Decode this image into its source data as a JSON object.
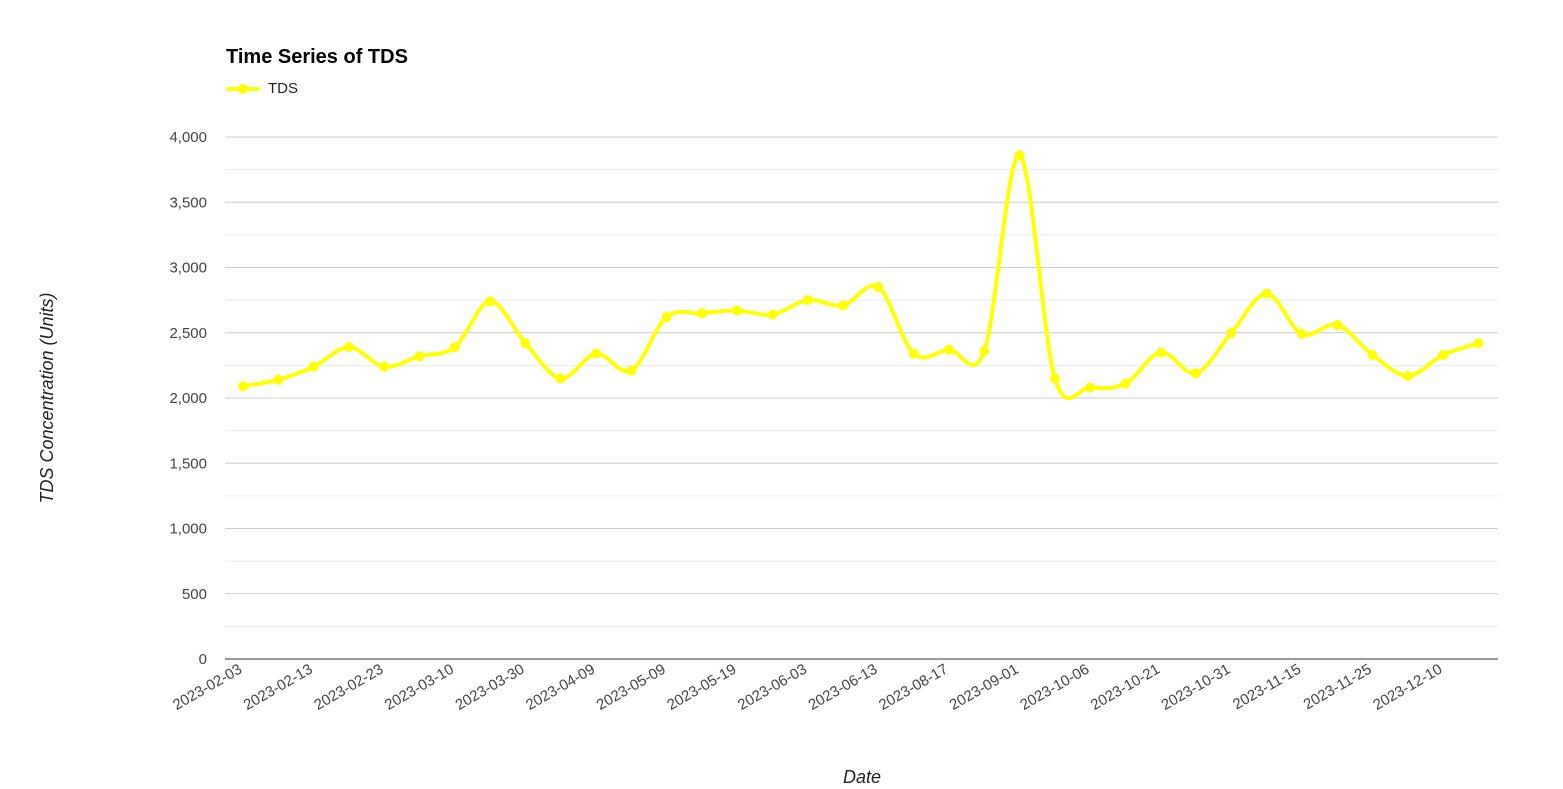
{
  "chart_data": {
    "type": "line",
    "title": "Time Series of TDS",
    "xlabel": "Date",
    "ylabel": "TDS Concentration (Units)",
    "legend_position": "top-left",
    "grid": true,
    "ylim": [
      0,
      4000
    ],
    "yticks": [
      0,
      500,
      1000,
      1500,
      2000,
      2500,
      3000,
      3500,
      4000
    ],
    "ytick_labels": [
      "0",
      "500",
      "1,000",
      "1,500",
      "2,000",
      "2,500",
      "3,000",
      "3,500",
      "4,000"
    ],
    "x_tick_labels": [
      "2023-02-03",
      "2023-02-13",
      "2023-02-23",
      "2023-03-10",
      "2023-03-30",
      "2023-04-09",
      "2023-05-09",
      "2023-05-19",
      "2023-06-03",
      "2023-06-13",
      "2023-08-17",
      "2023-09-01",
      "2023-10-06",
      "2023-10-21",
      "2023-10-31",
      "2023-11-15",
      "2023-11-25",
      "2023-12-10"
    ],
    "series": [
      {
        "name": "TDS",
        "color": "#ffff00",
        "values": [
          2090,
          2140,
          2240,
          2390,
          2240,
          2320,
          2390,
          2740,
          2420,
          2150,
          2340,
          2210,
          2620,
          2650,
          2670,
          2640,
          2750,
          2710,
          2850,
          2340,
          2370,
          2360,
          3860,
          2150,
          2080,
          2110,
          2350,
          2190,
          2500,
          2800,
          2490,
          2560,
          2330,
          2170,
          2330,
          2420
        ]
      }
    ]
  }
}
